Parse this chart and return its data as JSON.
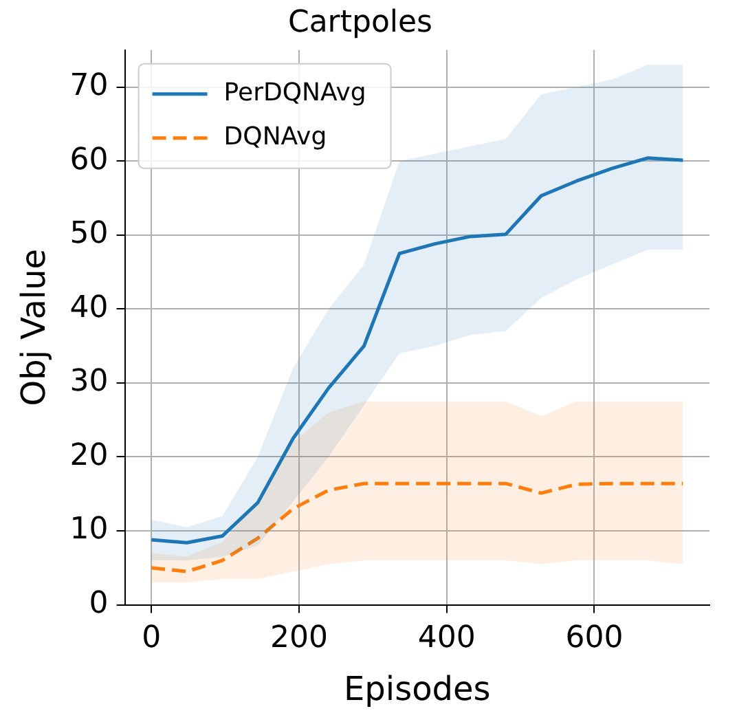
{
  "chart_data": {
    "type": "line",
    "title": "Cartpoles",
    "xlabel": "Episodes",
    "ylabel": "Obj Value",
    "x": [
      0,
      48,
      96,
      144,
      192,
      240,
      288,
      336,
      384,
      432,
      480,
      528,
      576,
      624,
      672,
      720
    ],
    "series": [
      {
        "name": "PerDQNAvg",
        "color": "#1f77b4",
        "line_style": "solid",
        "values": [
          8.8,
          8.4,
          9.3,
          13.8,
          22.5,
          29.3,
          35,
          47.5,
          48.8,
          49.8,
          50.1,
          55.3,
          57.3,
          59,
          60.4,
          60.1
        ],
        "lower": [
          6,
          6,
          6.5,
          8,
          14,
          20,
          27,
          34,
          35,
          36.5,
          37,
          41.5,
          44,
          46,
          48,
          48
        ],
        "upper": [
          11.5,
          10.5,
          12,
          20,
          32,
          40,
          46,
          60,
          61,
          62,
          63,
          69,
          70,
          71,
          73,
          73
        ]
      },
      {
        "name": "DQNAvg",
        "color": "#ff7f0e",
        "line_style": "dashed",
        "values": [
          5,
          4.5,
          6,
          9,
          13,
          15.5,
          16.4,
          16.4,
          16.4,
          16.4,
          16.4,
          15.1,
          16.3,
          16.4,
          16.4,
          16.4
        ],
        "lower": [
          3,
          3,
          3.5,
          3.5,
          4.5,
          5.5,
          6,
          6,
          6,
          6,
          6,
          5.5,
          6,
          6,
          6,
          5.5
        ],
        "upper": [
          7,
          6.5,
          8.5,
          14,
          22,
          26,
          27.5,
          27.5,
          27.5,
          27.5,
          27.5,
          25.5,
          27.5,
          27.5,
          27.5,
          27.5
        ]
      }
    ],
    "xlim": [
      -36,
      756
    ],
    "xticks": [
      0,
      200,
      400,
      600
    ],
    "ylim": [
      0,
      75
    ],
    "yticks": [
      0,
      10,
      20,
      30,
      40,
      50,
      60,
      70
    ],
    "grid": true,
    "legend": "top left",
    "marker": "none"
  }
}
